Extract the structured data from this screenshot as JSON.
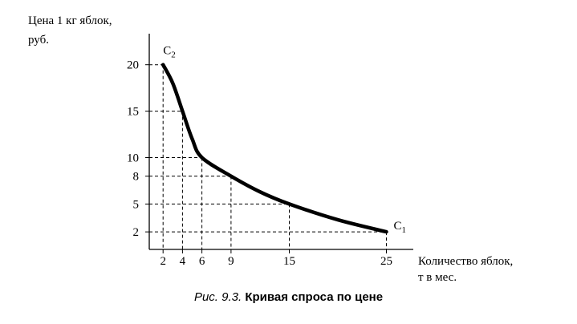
{
  "chart_data": {
    "type": "line",
    "ylabel_lines": [
      "Цена 1 кг яблок,",
      "руб."
    ],
    "xlabel_lines": [
      "Количество яблок,",
      "т в мес."
    ],
    "x_ticks": [
      2,
      4,
      6,
      9,
      15,
      25
    ],
    "y_ticks": [
      2,
      5,
      8,
      10,
      15,
      20
    ],
    "xlim": [
      0,
      26.5
    ],
    "ylim": [
      0,
      23
    ],
    "grid": false,
    "series": [
      {
        "points": [
          {
            "x": 2,
            "y": 20
          },
          {
            "x": 3,
            "y": 18
          },
          {
            "x": 4,
            "y": 15
          },
          {
            "x": 5,
            "y": 12
          },
          {
            "x": 6,
            "y": 10
          },
          {
            "x": 9,
            "y": 8
          },
          {
            "x": 12,
            "y": 6.3
          },
          {
            "x": 15,
            "y": 5
          },
          {
            "x": 20,
            "y": 3.3
          },
          {
            "x": 25,
            "y": 2
          }
        ]
      }
    ],
    "reference_points": [
      {
        "x": 2,
        "y": 20
      },
      {
        "x": 4,
        "y": 15
      },
      {
        "x": 6,
        "y": 10
      },
      {
        "x": 9,
        "y": 8
      },
      {
        "x": 15,
        "y": 5
      },
      {
        "x": 25,
        "y": 2
      }
    ],
    "annotations": [
      {
        "base": "C",
        "sub": "2",
        "x": 2,
        "y": 20
      },
      {
        "base": "C",
        "sub": "1",
        "x": 25,
        "y": 2
      }
    ]
  },
  "caption": {
    "figure": "Рис. 9.3.",
    "title": "Кривая спроса по цене"
  }
}
